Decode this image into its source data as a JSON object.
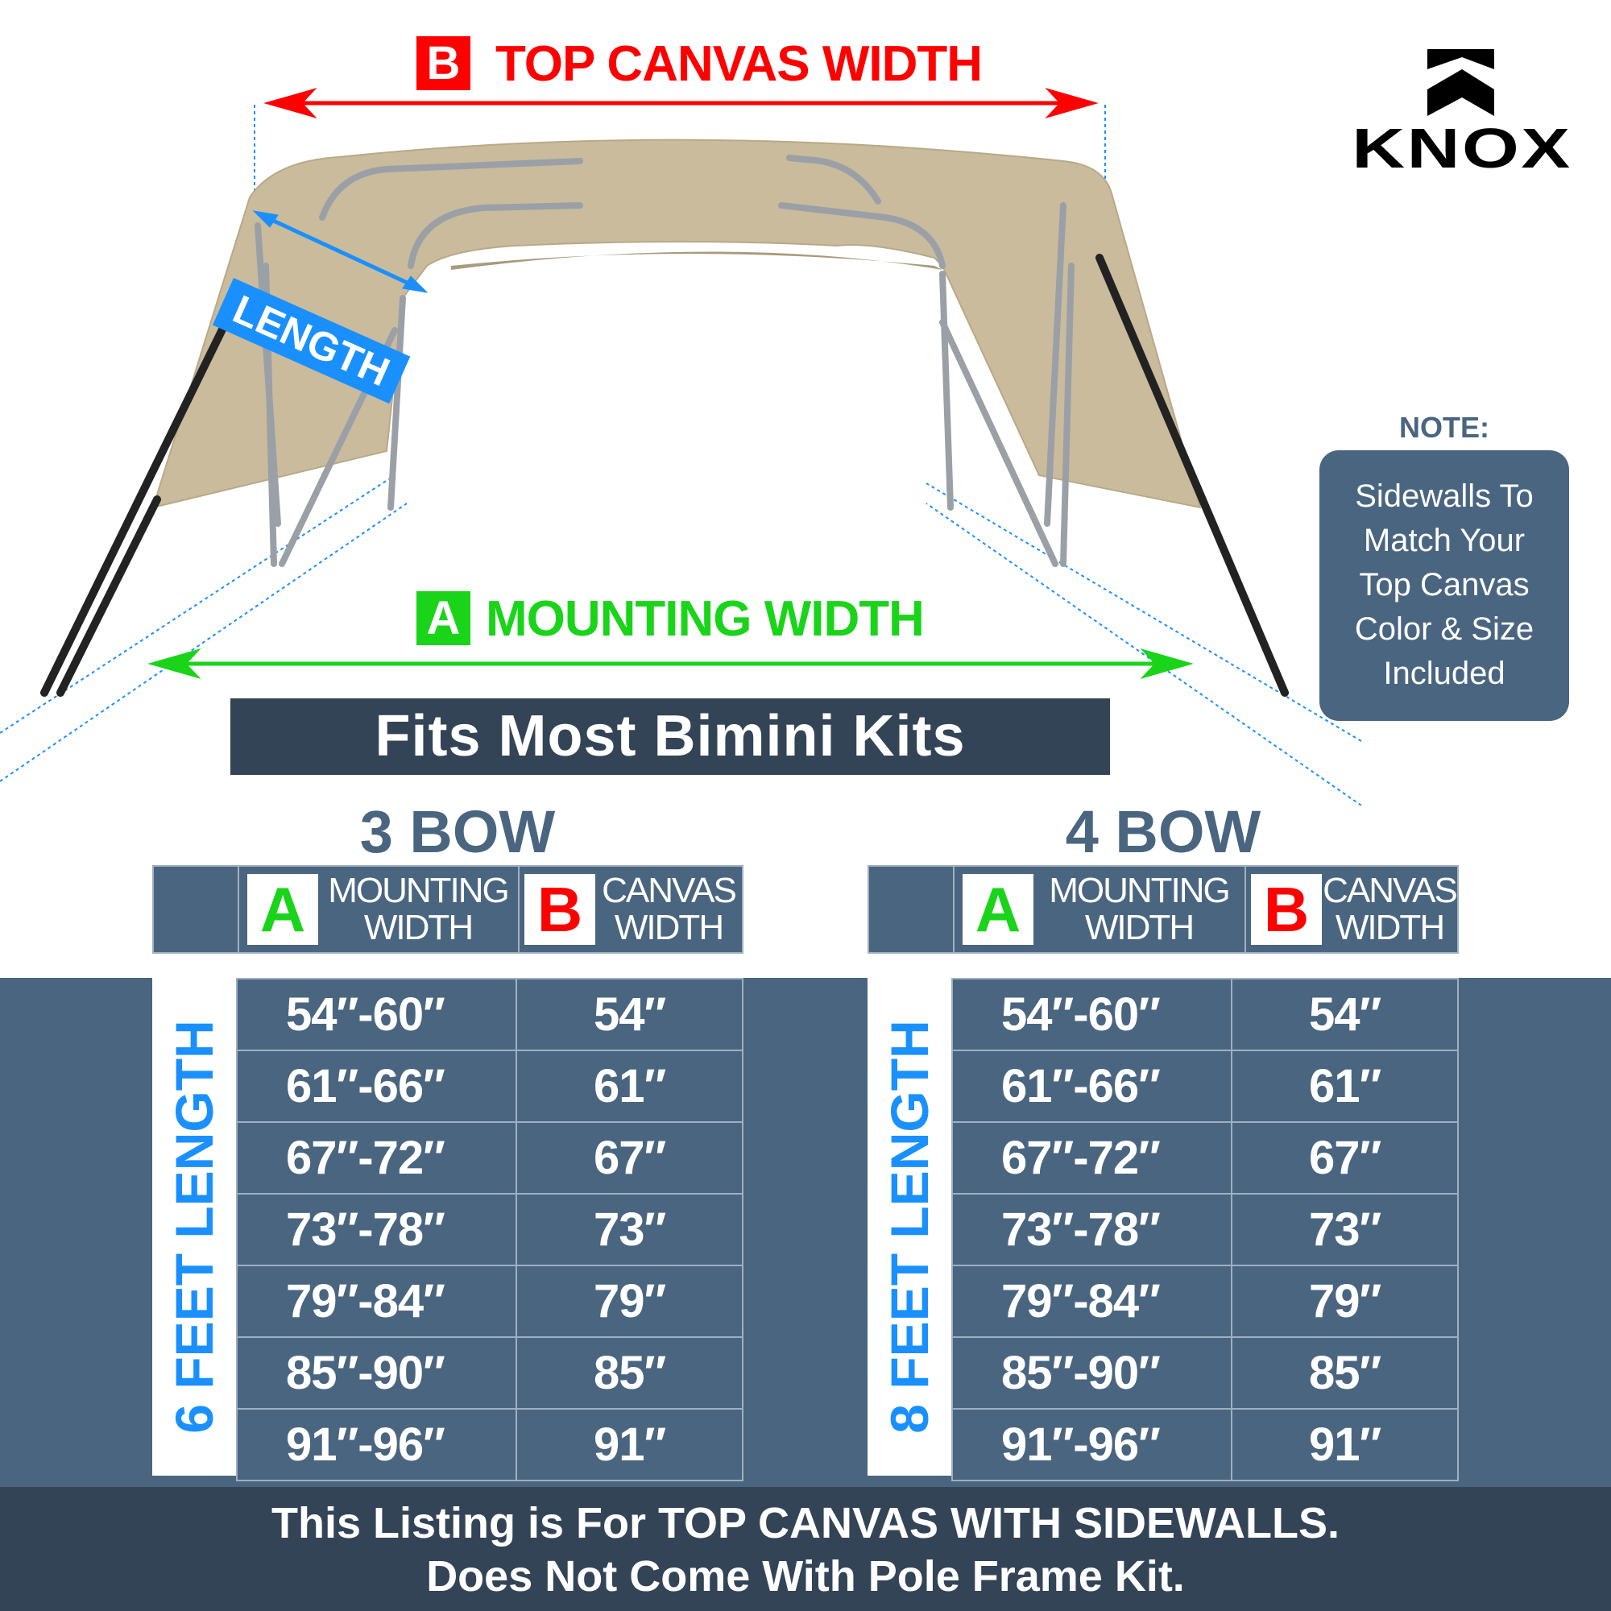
{
  "top_canvas": {
    "letter": "B",
    "label": "TOP CANVAS WIDTH",
    "color": "#ff0000"
  },
  "length_label": "LENGTH",
  "mounting": {
    "letter": "A",
    "label": "MOUNTING WIDTH",
    "color": "#1ad41a"
  },
  "logo": {
    "text": "KNOX"
  },
  "note": {
    "heading": "NOTE:",
    "lines": [
      "Sidewalls To",
      "Match Your",
      "Top Canvas",
      "Color & Size",
      "Included"
    ]
  },
  "banner": "Fits Most Bimini Kits",
  "tables": [
    {
      "title": "3 BOW",
      "col_a_letter": "A",
      "col_a": [
        "MOUNTING",
        "WIDTH"
      ],
      "col_b_letter": "B",
      "col_b": [
        "CANVAS",
        "WIDTH"
      ],
      "length_label": "6 FEET LENGTH",
      "rows": [
        [
          "54″-60″",
          "54″"
        ],
        [
          "61″-66″",
          "61″"
        ],
        [
          "67″-72″",
          "67″"
        ],
        [
          "73″-78″",
          "73″"
        ],
        [
          "79″-84″",
          "79″"
        ],
        [
          "85″-90″",
          "85″"
        ],
        [
          "91″-96″",
          "91″"
        ]
      ]
    },
    {
      "title": "4 BOW",
      "col_a_letter": "A",
      "col_a": [
        "MOUNTING",
        "WIDTH"
      ],
      "col_b_letter": "B",
      "col_b": [
        "CANVAS",
        "WIDTH"
      ],
      "length_label": "8 FEET LENGTH",
      "rows": [
        [
          "54″-60″",
          "54″"
        ],
        [
          "61″-66″",
          "61″"
        ],
        [
          "67″-72″",
          "67″"
        ],
        [
          "73″-78″",
          "73″"
        ],
        [
          "79″-84″",
          "79″"
        ],
        [
          "85″-90″",
          "85″"
        ],
        [
          "91″-96″",
          "91″"
        ]
      ]
    }
  ],
  "footer": [
    "This Listing is For TOP CANVAS WITH SIDEWALLS.",
    "Does Not Come With Pole Frame Kit."
  ]
}
